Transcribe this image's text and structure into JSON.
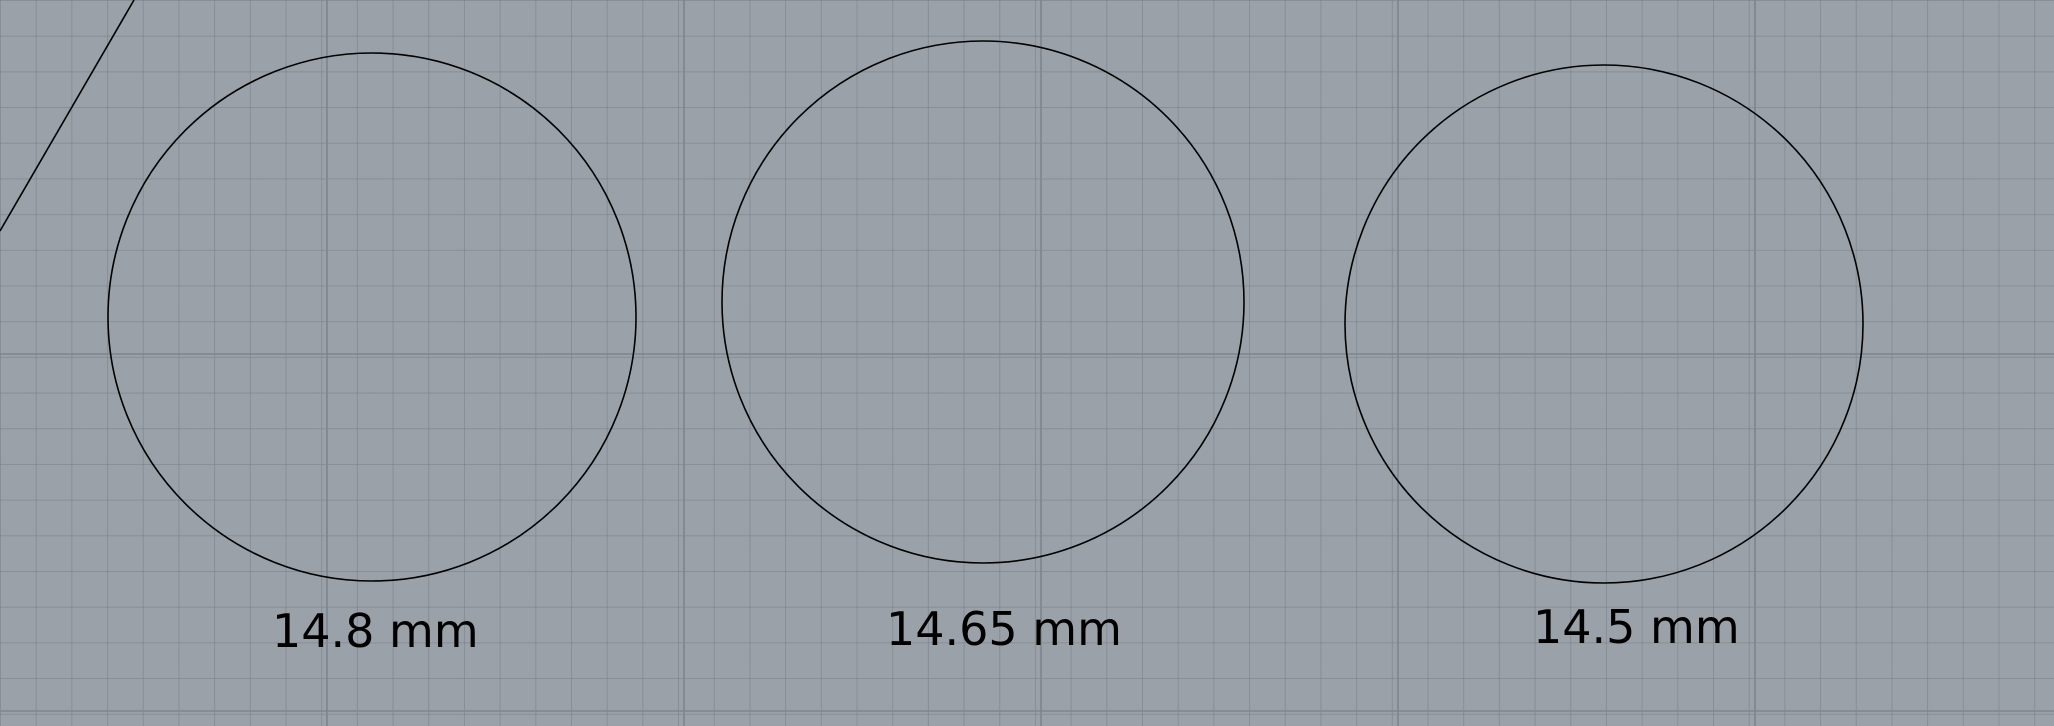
{
  "viewport": {
    "background_color": "#9ba1a9",
    "grid_color": "#787e86",
    "curve_color": "#000000"
  },
  "labels": {
    "circle_1": "14.8 mm",
    "circle_2": "14.65 mm",
    "circle_3": "14.5 mm"
  }
}
